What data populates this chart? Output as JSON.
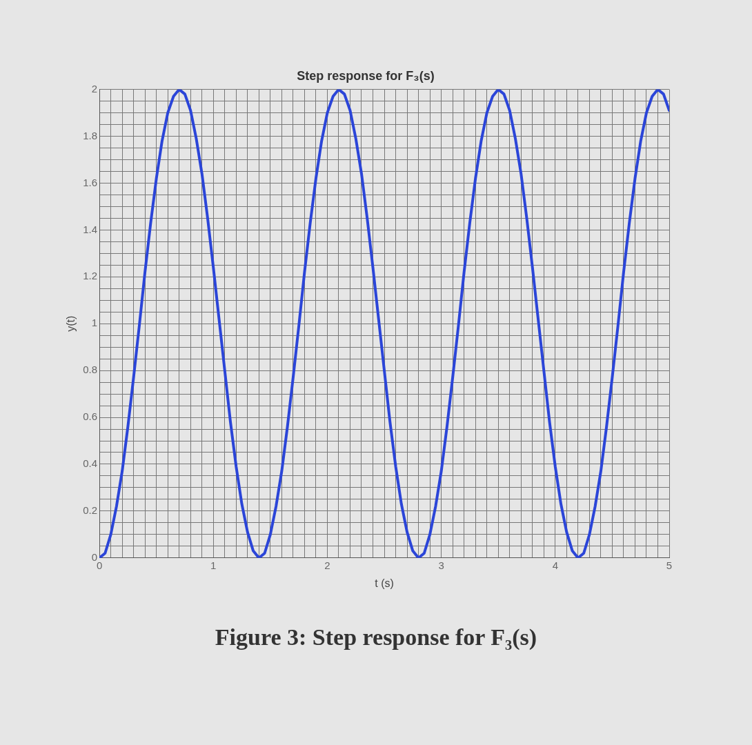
{
  "chart_data": {
    "type": "line",
    "title": "Step response for F₃(s)",
    "xlabel": "t (s)",
    "ylabel": "y(t)",
    "annotations": [
      "Figure 3: Step response for F₃(s)"
    ],
    "x": [
      0,
      0.05,
      0.1,
      0.15,
      0.2,
      0.25,
      0.3,
      0.35,
      0.4,
      0.45,
      0.5,
      0.55,
      0.6,
      0.65,
      0.7,
      0.75,
      0.8,
      0.85,
      0.9,
      0.95,
      1,
      1.05,
      1.1,
      1.15,
      1.2,
      1.25,
      1.3,
      1.35,
      1.4,
      1.45,
      1.5,
      1.55,
      1.6,
      1.65,
      1.7,
      1.75,
      1.8,
      1.85,
      1.9,
      1.95,
      2,
      2.05,
      2.1,
      2.15,
      2.2,
      2.25,
      2.3,
      2.35,
      2.4,
      2.45,
      2.5,
      2.55,
      2.6,
      2.65,
      2.7,
      2.75,
      2.8,
      2.85,
      2.9,
      2.95,
      3,
      3.05,
      3.1,
      3.15,
      3.2,
      3.25,
      3.3,
      3.35,
      3.4,
      3.45,
      3.5,
      3.55,
      3.6,
      3.65,
      3.7,
      3.75,
      3.8,
      3.85,
      3.9,
      3.95,
      4,
      4.05,
      4.1,
      4.15,
      4.2,
      4.25,
      4.3,
      4.35,
      4.4,
      4.45,
      4.5,
      4.55,
      4.6,
      4.65,
      4.7,
      4.75,
      4.8,
      4.85,
      4.9,
      4.95,
      5
    ],
    "series": [
      {
        "color": "#2b45d8",
        "values": [
          0,
          0.02,
          0.1,
          0.22,
          0.37,
          0.56,
          0.77,
          0.99,
          1.22,
          1.43,
          1.62,
          1.78,
          1.9,
          1.97,
          2,
          1.98,
          1.91,
          1.79,
          1.64,
          1.45,
          1.24,
          1.02,
          0.8,
          0.58,
          0.39,
          0.23,
          0.11,
          0.03,
          0,
          0.02,
          0.1,
          0.22,
          0.37,
          0.56,
          0.77,
          0.99,
          1.22,
          1.43,
          1.62,
          1.78,
          1.9,
          1.97,
          2,
          1.98,
          1.91,
          1.79,
          1.64,
          1.45,
          1.24,
          1.02,
          0.8,
          0.58,
          0.39,
          0.23,
          0.11,
          0.03,
          0,
          0.02,
          0.1,
          0.22,
          0.37,
          0.56,
          0.77,
          0.99,
          1.22,
          1.43,
          1.62,
          1.78,
          1.9,
          1.97,
          2,
          1.98,
          1.91,
          1.79,
          1.64,
          1.45,
          1.24,
          1.02,
          0.8,
          0.58,
          0.39,
          0.23,
          0.11,
          0.03,
          0,
          0.02,
          0.1,
          0.22,
          0.37,
          0.56,
          0.77,
          0.99,
          1.22,
          1.43,
          1.62,
          1.78,
          1.9,
          1.97,
          2,
          1.98,
          1.91
        ]
      }
    ],
    "xlim": [
      0,
      5
    ],
    "xticks": [
      0,
      {
        "value": 0.1,
        "label": null
      },
      {
        "value": 0.2,
        "label": null
      },
      {
        "value": 0.3,
        "label": null
      },
      {
        "value": 0.4,
        "label": null
      },
      {
        "value": 0.5,
        "label": null
      },
      {
        "value": 0.6,
        "label": null
      },
      {
        "value": 0.7,
        "label": null
      },
      {
        "value": 0.8,
        "label": null
      },
      {
        "value": 0.9,
        "label": null
      },
      1,
      {
        "value": 1.1,
        "label": null
      },
      {
        "value": 1.2,
        "label": null
      },
      {
        "value": 1.3,
        "label": null
      },
      {
        "value": 1.4,
        "label": null
      },
      {
        "value": 1.5,
        "label": null
      },
      {
        "value": 1.6,
        "label": null
      },
      {
        "value": 1.7,
        "label": null
      },
      {
        "value": 1.8,
        "label": null
      },
      {
        "value": 1.9,
        "label": null
      },
      2,
      {
        "value": 2.1,
        "label": null
      },
      {
        "value": 2.2,
        "label": null
      },
      {
        "value": 2.3,
        "label": null
      },
      {
        "value": 2.4,
        "label": null
      },
      {
        "value": 2.5,
        "label": null
      },
      {
        "value": 2.6,
        "label": null
      },
      {
        "value": 2.7,
        "label": null
      },
      {
        "value": 2.8,
        "label": null
      },
      {
        "value": 2.9,
        "label": null
      },
      3,
      {
        "value": 3.1,
        "label": null
      },
      {
        "value": 3.2,
        "label": null
      },
      {
        "value": 3.3,
        "label": null
      },
      {
        "value": 3.4,
        "label": null
      },
      {
        "value": 3.5,
        "label": null
      },
      {
        "value": 3.6,
        "label": null
      },
      {
        "value": 3.7,
        "label": null
      },
      {
        "value": 3.8,
        "label": null
      },
      {
        "value": 3.9,
        "label": null
      },
      4,
      {
        "value": 4.1,
        "label": null
      },
      {
        "value": 4.2,
        "label": null
      },
      {
        "value": 4.3,
        "label": null
      },
      {
        "value": 4.4,
        "label": null
      },
      {
        "value": 4.5,
        "label": null
      },
      {
        "value": 4.6,
        "label": null
      },
      {
        "value": 4.7,
        "label": null
      },
      {
        "value": 4.8,
        "label": null
      },
      {
        "value": 4.9,
        "label": null
      },
      5
    ],
    "ylim": [
      0,
      2
    ],
    "yticks": [
      0,
      {
        "value": 0.05,
        "label": null
      },
      {
        "value": 0.1,
        "label": null
      },
      {
        "value": 0.15,
        "label": null
      },
      0.2,
      {
        "value": 0.25,
        "label": null
      },
      {
        "value": 0.3,
        "label": null
      },
      {
        "value": 0.35,
        "label": null
      },
      0.4,
      {
        "value": 0.45,
        "label": null
      },
      {
        "value": 0.5,
        "label": null
      },
      {
        "value": 0.55,
        "label": null
      },
      0.6,
      {
        "value": 0.65,
        "label": null
      },
      {
        "value": 0.7,
        "label": null
      },
      {
        "value": 0.75,
        "label": null
      },
      0.8,
      {
        "value": 0.85,
        "label": null
      },
      {
        "value": 0.9,
        "label": null
      },
      {
        "value": 0.95,
        "label": null
      },
      1,
      {
        "value": 1.05,
        "label": null
      },
      {
        "value": 1.1,
        "label": null
      },
      {
        "value": 1.15,
        "label": null
      },
      1.2,
      {
        "value": 1.25,
        "label": null
      },
      {
        "value": 1.3,
        "label": null
      },
      {
        "value": 1.35,
        "label": null
      },
      1.4,
      {
        "value": 1.45,
        "label": null
      },
      {
        "value": 1.5,
        "label": null
      },
      {
        "value": 1.55,
        "label": null
      },
      1.6,
      {
        "value": 1.65,
        "label": null
      },
      {
        "value": 1.7,
        "label": null
      },
      {
        "value": 1.75,
        "label": null
      },
      1.8,
      {
        "value": 1.85,
        "label": null
      },
      {
        "value": 1.9,
        "label": null
      },
      {
        "value": 1.95,
        "label": null
      },
      2
    ],
    "grid": true,
    "legend": false,
    "marker": "none",
    "line_style": "solid"
  }
}
